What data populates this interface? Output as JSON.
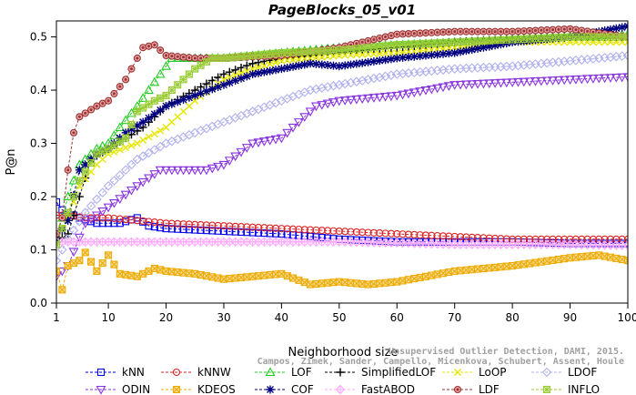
{
  "chart_data": {
    "type": "line",
    "title": "PageBlocks_05_v01",
    "xlabel": "Neighborhood size",
    "ylabel": "P@n",
    "xlim": [
      1,
      100
    ],
    "ylim": [
      0,
      0.53
    ],
    "xticks": [
      1,
      10,
      20,
      30,
      40,
      50,
      60,
      70,
      80,
      90,
      100
    ],
    "yticks": [
      0.0,
      0.1,
      0.2,
      0.3,
      0.4,
      0.5
    ],
    "ytick_labels": [
      "0.0",
      "0.1",
      "0.2",
      "0.3",
      "0.4",
      "0.5"
    ],
    "grid": false,
    "legend_position": "bottom",
    "credit": [
      "Campos, Zimek, Sander, Campello, Micenkova, Schubert, Assent, Houle",
      "Unsupervised Outlier Detection, DAMI, 2015."
    ],
    "series": [
      {
        "name": "kNN",
        "color": "#0000ee",
        "marker": "square",
        "points": [
          [
            1,
            0.19
          ],
          [
            2,
            0.175
          ],
          [
            3,
            0.17
          ],
          [
            5,
            0.16
          ],
          [
            8,
            0.15
          ],
          [
            12,
            0.15
          ],
          [
            15,
            0.16
          ],
          [
            17,
            0.145
          ],
          [
            20,
            0.14
          ],
          [
            30,
            0.135
          ],
          [
            40,
            0.13
          ],
          [
            50,
            0.12
          ],
          [
            60,
            0.115
          ],
          [
            70,
            0.115
          ],
          [
            80,
            0.115
          ],
          [
            90,
            0.112
          ],
          [
            100,
            0.112
          ]
        ]
      },
      {
        "name": "kNNW",
        "color": "#dd2222",
        "marker": "circle",
        "points": [
          [
            1,
            0.165
          ],
          [
            3,
            0.165
          ],
          [
            6,
            0.16
          ],
          [
            10,
            0.16
          ],
          [
            15,
            0.155
          ],
          [
            20,
            0.15
          ],
          [
            30,
            0.145
          ],
          [
            40,
            0.14
          ],
          [
            50,
            0.135
          ],
          [
            60,
            0.13
          ],
          [
            70,
            0.125
          ],
          [
            80,
            0.12
          ],
          [
            90,
            0.12
          ],
          [
            100,
            0.12
          ]
        ]
      },
      {
        "name": "LOF",
        "color": "#22cc22",
        "marker": "triangle-up",
        "points": [
          [
            1,
            0.12
          ],
          [
            3,
            0.2
          ],
          [
            5,
            0.26
          ],
          [
            8,
            0.29
          ],
          [
            10,
            0.3
          ],
          [
            12,
            0.33
          ],
          [
            15,
            0.37
          ],
          [
            17,
            0.4
          ],
          [
            19,
            0.43
          ],
          [
            21,
            0.46
          ],
          [
            25,
            0.46
          ],
          [
            30,
            0.46
          ],
          [
            35,
            0.465
          ],
          [
            40,
            0.47
          ],
          [
            50,
            0.48
          ],
          [
            60,
            0.485
          ],
          [
            70,
            0.49
          ],
          [
            80,
            0.495
          ],
          [
            90,
            0.5
          ],
          [
            100,
            0.505
          ]
        ]
      },
      {
        "name": "SimplifiedLOF",
        "color": "#000000",
        "marker": "plus",
        "points": [
          [
            1,
            0.115
          ],
          [
            3,
            0.13
          ],
          [
            5,
            0.2
          ],
          [
            7,
            0.27
          ],
          [
            10,
            0.29
          ],
          [
            13,
            0.31
          ],
          [
            16,
            0.33
          ],
          [
            20,
            0.37
          ],
          [
            25,
            0.4
          ],
          [
            30,
            0.43
          ],
          [
            35,
            0.45
          ],
          [
            40,
            0.46
          ],
          [
            50,
            0.47
          ],
          [
            60,
            0.48
          ],
          [
            70,
            0.49
          ],
          [
            80,
            0.495
          ],
          [
            90,
            0.5
          ],
          [
            100,
            0.5
          ]
        ]
      },
      {
        "name": "LoOP",
        "color": "#e6e600",
        "marker": "x",
        "points": [
          [
            1,
            0.12
          ],
          [
            3,
            0.16
          ],
          [
            5,
            0.22
          ],
          [
            8,
            0.26
          ],
          [
            10,
            0.28
          ],
          [
            15,
            0.3
          ],
          [
            20,
            0.33
          ],
          [
            25,
            0.38
          ],
          [
            30,
            0.42
          ],
          [
            35,
            0.44
          ],
          [
            40,
            0.455
          ],
          [
            50,
            0.465
          ],
          [
            60,
            0.47
          ],
          [
            70,
            0.48
          ],
          [
            80,
            0.49
          ],
          [
            90,
            0.49
          ],
          [
            100,
            0.49
          ]
        ]
      },
      {
        "name": "LDOF",
        "color": "#b0b0ee",
        "marker": "diamond",
        "points": [
          [
            1,
            0.08
          ],
          [
            3,
            0.12
          ],
          [
            6,
            0.17
          ],
          [
            10,
            0.22
          ],
          [
            15,
            0.27
          ],
          [
            20,
            0.3
          ],
          [
            25,
            0.32
          ],
          [
            30,
            0.34
          ],
          [
            35,
            0.36
          ],
          [
            40,
            0.38
          ],
          [
            45,
            0.4
          ],
          [
            50,
            0.41
          ],
          [
            60,
            0.43
          ],
          [
            70,
            0.44
          ],
          [
            80,
            0.445
          ],
          [
            90,
            0.455
          ],
          [
            100,
            0.465
          ]
        ]
      },
      {
        "name": "ODIN",
        "color": "#8833dd",
        "marker": "triangle-down",
        "points": [
          [
            1,
            0.05
          ],
          [
            3,
            0.07
          ],
          [
            6,
            0.15
          ],
          [
            10,
            0.18
          ],
          [
            15,
            0.22
          ],
          [
            19,
            0.25
          ],
          [
            23,
            0.25
          ],
          [
            27,
            0.25
          ],
          [
            30,
            0.26
          ],
          [
            35,
            0.3
          ],
          [
            40,
            0.31
          ],
          [
            43,
            0.34
          ],
          [
            46,
            0.37
          ],
          [
            50,
            0.38
          ],
          [
            55,
            0.385
          ],
          [
            60,
            0.39
          ],
          [
            65,
            0.4
          ],
          [
            70,
            0.41
          ],
          [
            80,
            0.415
          ],
          [
            90,
            0.42
          ],
          [
            100,
            0.425
          ]
        ]
      },
      {
        "name": "KDEOS",
        "color": "#eeaa00",
        "marker": "square-x",
        "points": [
          [
            1,
            0.06
          ],
          [
            2,
            0.025
          ],
          [
            3,
            0.07
          ],
          [
            5,
            0.08
          ],
          [
            6,
            0.095
          ],
          [
            8,
            0.06
          ],
          [
            10,
            0.09
          ],
          [
            12,
            0.055
          ],
          [
            15,
            0.05
          ],
          [
            18,
            0.065
          ],
          [
            20,
            0.06
          ],
          [
            25,
            0.055
          ],
          [
            30,
            0.045
          ],
          [
            35,
            0.05
          ],
          [
            40,
            0.055
          ],
          [
            45,
            0.035
          ],
          [
            50,
            0.04
          ],
          [
            55,
            0.035
          ],
          [
            60,
            0.04
          ],
          [
            65,
            0.05
          ],
          [
            70,
            0.06
          ],
          [
            75,
            0.065
          ],
          [
            80,
            0.07
          ],
          [
            90,
            0.085
          ],
          [
            95,
            0.09
          ],
          [
            100,
            0.08
          ]
        ]
      },
      {
        "name": "COF",
        "color": "#000080",
        "marker": "asterisk",
        "points": [
          [
            1,
            0.12
          ],
          [
            3,
            0.155
          ],
          [
            5,
            0.25
          ],
          [
            8,
            0.28
          ],
          [
            10,
            0.29
          ],
          [
            13,
            0.32
          ],
          [
            16,
            0.34
          ],
          [
            20,
            0.37
          ],
          [
            25,
            0.39
          ],
          [
            30,
            0.41
          ],
          [
            35,
            0.43
          ],
          [
            40,
            0.44
          ],
          [
            45,
            0.45
          ],
          [
            50,
            0.445
          ],
          [
            60,
            0.46
          ],
          [
            70,
            0.47
          ],
          [
            80,
            0.49
          ],
          [
            90,
            0.5
          ],
          [
            100,
            0.52
          ]
        ]
      },
      {
        "name": "FastABOD",
        "color": "#ffaaff",
        "marker": "diamond-plus",
        "points": [
          [
            1,
            0.115
          ],
          [
            5,
            0.115
          ],
          [
            10,
            0.115
          ],
          [
            20,
            0.115
          ],
          [
            30,
            0.115
          ],
          [
            40,
            0.115
          ],
          [
            50,
            0.115
          ],
          [
            60,
            0.113
          ],
          [
            70,
            0.11
          ],
          [
            80,
            0.11
          ],
          [
            90,
            0.11
          ],
          [
            100,
            0.108
          ]
        ]
      },
      {
        "name": "LDF",
        "color": "#993333",
        "marker": "circle-filled",
        "points": [
          [
            1,
            0.13
          ],
          [
            2,
            0.16
          ],
          [
            3,
            0.25
          ],
          [
            4,
            0.32
          ],
          [
            5,
            0.35
          ],
          [
            8,
            0.37
          ],
          [
            10,
            0.38
          ],
          [
            13,
            0.42
          ],
          [
            16,
            0.48
          ],
          [
            18,
            0.485
          ],
          [
            20,
            0.465
          ],
          [
            25,
            0.46
          ],
          [
            30,
            0.46
          ],
          [
            40,
            0.465
          ],
          [
            50,
            0.48
          ],
          [
            60,
            0.505
          ],
          [
            70,
            0.51
          ],
          [
            80,
            0.51
          ],
          [
            90,
            0.515
          ],
          [
            100,
            0.5
          ]
        ]
      },
      {
        "name": "INFLO",
        "color": "#99cc33",
        "marker": "square-cross",
        "points": [
          [
            1,
            0.11
          ],
          [
            3,
            0.17
          ],
          [
            5,
            0.23
          ],
          [
            8,
            0.28
          ],
          [
            10,
            0.29
          ],
          [
            13,
            0.31
          ],
          [
            15,
            0.36
          ],
          [
            18,
            0.38
          ],
          [
            20,
            0.39
          ],
          [
            25,
            0.44
          ],
          [
            28,
            0.46
          ],
          [
            30,
            0.46
          ],
          [
            40,
            0.47
          ],
          [
            50,
            0.475
          ],
          [
            60,
            0.485
          ],
          [
            70,
            0.49
          ],
          [
            80,
            0.495
          ],
          [
            90,
            0.5
          ],
          [
            100,
            0.5
          ]
        ]
      }
    ]
  }
}
